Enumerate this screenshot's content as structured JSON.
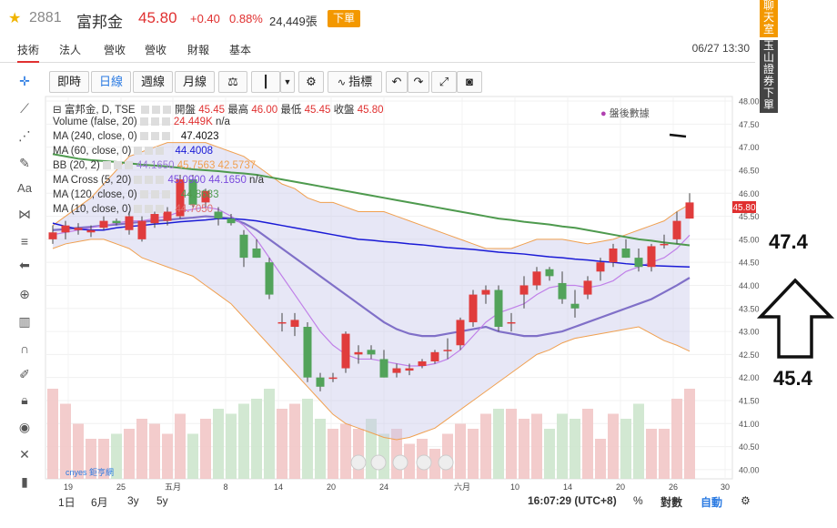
{
  "header": {
    "star_icon": "star-icon",
    "code": "2881",
    "name": "富邦金",
    "price": "45.80",
    "change": "+0.40",
    "change_pct": "0.88%",
    "volume": "24,449張",
    "order_label": "下單"
  },
  "tabs": [
    {
      "label": "技術"
    },
    {
      "label": "法人"
    },
    {
      "label": "營收"
    },
    {
      "label": "營收"
    },
    {
      "label": "財報"
    },
    {
      "label": "基本"
    }
  ],
  "datetime": "06/27 13:30",
  "side_buttons": {
    "chat": "聊天室",
    "broker": "玉山證券下單"
  },
  "toolbar": {
    "realtime": "即時",
    "daily": "日線",
    "weekly": "週線",
    "monthly": "月線",
    "indicators": "指標"
  },
  "legend": {
    "main": "富邦金, D, TSE",
    "open_label": "開盤",
    "open": "45.45",
    "high_label": "最高",
    "high": "46.00",
    "low_label": "最低",
    "low": "45.45",
    "close_label": "收盤",
    "close": "45.80",
    "volume": "Volume (false, 20)",
    "volume_val": "24.449K",
    "volume_na": "n/a",
    "ma240": "MA (240, close, 0)",
    "ma240_val": "47.4023",
    "ma60": "MA (60, close, 0)",
    "ma60_val": "44.4008",
    "bb": "BB (20, 2)",
    "bb_vals": [
      "44.1650",
      "45.7563",
      "42.5737"
    ],
    "macross": "MA Cross (5, 20)",
    "macross_vals": [
      "45.0900",
      "44.1650"
    ],
    "macross_na": "n/a",
    "ma120": "MA (120, close, 0)",
    "ma120_val": "44.8683",
    "ma10": "MA (10, close, 0)",
    "ma10_val": "44.7050",
    "after_hours": "盤後數據"
  },
  "current_price_tag": "45.80",
  "bottom": {
    "ranges": [
      "1日",
      "6月",
      "3y",
      "5y"
    ],
    "clock": "16:07:29 (UTC+8)",
    "pct": "%",
    "log": "對數",
    "auto": "自動",
    "logo": "cnyes 鉅亨網"
  },
  "annotations": {
    "upper": "47.4",
    "lower": "45.4"
  },
  "chart_data": {
    "type": "candlestick",
    "ylim": [
      39.8,
      48.1
    ],
    "y_ticks": [
      "48.00",
      "47.50",
      "47.00",
      "46.50",
      "46.00",
      "45.50",
      "45.00",
      "44.50",
      "44.00",
      "43.50",
      "43.00",
      "42.50",
      "42.00",
      "41.50",
      "41.00",
      "40.50",
      "40.00"
    ],
    "x_ticks": [
      "19",
      "25",
      "五月",
      "8",
      "14",
      "20",
      "24",
      "六月",
      "10",
      "14",
      "20",
      "26",
      "30"
    ],
    "colors": {
      "up": "#e03c3c",
      "down": "#52a35a",
      "ma60": "#1a1ad6",
      "ma120": "#4e9a4e",
      "bb_fill": "#c9c9ec",
      "bb_line": "#f0a050"
    },
    "candles": [
      {
        "o": 45.0,
        "h": 45.3,
        "l": 44.9,
        "c": 45.15
      },
      {
        "o": 45.15,
        "h": 45.4,
        "l": 45.0,
        "c": 45.3
      },
      {
        "o": 45.2,
        "h": 45.35,
        "l": 45.1,
        "c": 45.25
      },
      {
        "o": 45.15,
        "h": 45.3,
        "l": 45.05,
        "c": 45.2
      },
      {
        "o": 45.25,
        "h": 45.5,
        "l": 45.2,
        "c": 45.4
      },
      {
        "o": 45.4,
        "h": 45.45,
        "l": 45.3,
        "c": 45.35
      },
      {
        "o": 45.2,
        "h": 45.6,
        "l": 45.1,
        "c": 45.5
      },
      {
        "o": 45.0,
        "h": 45.5,
        "l": 44.95,
        "c": 45.4
      },
      {
        "o": 45.35,
        "h": 45.6,
        "l": 45.25,
        "c": 45.55
      },
      {
        "o": 45.4,
        "h": 45.7,
        "l": 45.3,
        "c": 45.6
      },
      {
        "o": 45.5,
        "h": 46.4,
        "l": 45.45,
        "c": 46.3
      },
      {
        "o": 46.3,
        "h": 46.4,
        "l": 45.7,
        "c": 45.75
      },
      {
        "o": 45.8,
        "h": 46.1,
        "l": 45.7,
        "c": 46.05
      },
      {
        "o": 45.6,
        "h": 45.7,
        "l": 45.3,
        "c": 45.45
      },
      {
        "o": 45.45,
        "h": 45.55,
        "l": 45.3,
        "c": 45.35
      },
      {
        "o": 45.1,
        "h": 45.2,
        "l": 44.4,
        "c": 44.6
      },
      {
        "o": 44.8,
        "h": 45.0,
        "l": 44.6,
        "c": 44.6
      },
      {
        "o": 44.5,
        "h": 44.6,
        "l": 43.7,
        "c": 43.8
      },
      {
        "o": 43.2,
        "h": 43.4,
        "l": 43.0,
        "c": 43.2
      },
      {
        "o": 43.1,
        "h": 43.4,
        "l": 42.9,
        "c": 43.25
      },
      {
        "o": 43.1,
        "h": 43.2,
        "l": 41.9,
        "c": 42.0
      },
      {
        "o": 42.0,
        "h": 42.1,
        "l": 41.7,
        "c": 41.8
      },
      {
        "o": 42.0,
        "h": 42.1,
        "l": 41.9,
        "c": 42.0
      },
      {
        "o": 42.2,
        "h": 43.0,
        "l": 42.1,
        "c": 42.95
      },
      {
        "o": 42.5,
        "h": 42.7,
        "l": 42.3,
        "c": 42.55
      },
      {
        "o": 42.6,
        "h": 42.7,
        "l": 42.4,
        "c": 42.5
      },
      {
        "o": 42.4,
        "h": 42.6,
        "l": 42.0,
        "c": 42.0
      },
      {
        "o": 42.1,
        "h": 42.3,
        "l": 42.0,
        "c": 42.2
      },
      {
        "o": 42.15,
        "h": 42.3,
        "l": 42.05,
        "c": 42.2
      },
      {
        "o": 42.25,
        "h": 42.4,
        "l": 42.2,
        "c": 42.35
      },
      {
        "o": 42.35,
        "h": 42.6,
        "l": 42.3,
        "c": 42.55
      },
      {
        "o": 42.6,
        "h": 42.85,
        "l": 42.4,
        "c": 42.6
      },
      {
        "o": 42.7,
        "h": 43.3,
        "l": 42.6,
        "c": 43.25
      },
      {
        "o": 43.2,
        "h": 43.9,
        "l": 43.1,
        "c": 43.8
      },
      {
        "o": 43.8,
        "h": 44.0,
        "l": 43.6,
        "c": 43.9
      },
      {
        "o": 43.9,
        "h": 44.0,
        "l": 43.0,
        "c": 43.1
      },
      {
        "o": 43.2,
        "h": 43.4,
        "l": 43.0,
        "c": 43.2
      },
      {
        "o": 43.8,
        "h": 44.2,
        "l": 43.5,
        "c": 44.0
      },
      {
        "o": 44.0,
        "h": 44.4,
        "l": 43.9,
        "c": 44.3
      },
      {
        "o": 44.35,
        "h": 44.4,
        "l": 44.1,
        "c": 44.2
      },
      {
        "o": 44.05,
        "h": 44.3,
        "l": 43.6,
        "c": 43.7
      },
      {
        "o": 43.6,
        "h": 43.9,
        "l": 43.3,
        "c": 43.5
      },
      {
        "o": 43.8,
        "h": 44.2,
        "l": 43.7,
        "c": 44.1
      },
      {
        "o": 44.3,
        "h": 44.6,
        "l": 44.1,
        "c": 44.5
      },
      {
        "o": 44.5,
        "h": 44.9,
        "l": 44.4,
        "c": 44.8
      },
      {
        "o": 44.8,
        "h": 45.0,
        "l": 44.6,
        "c": 44.6
      },
      {
        "o": 44.6,
        "h": 44.8,
        "l": 44.3,
        "c": 44.4
      },
      {
        "o": 44.4,
        "h": 44.9,
        "l": 44.3,
        "c": 44.85
      },
      {
        "o": 44.9,
        "h": 45.1,
        "l": 44.8,
        "c": 44.9
      },
      {
        "o": 45.0,
        "h": 45.6,
        "l": 44.9,
        "c": 45.4
      },
      {
        "o": 45.45,
        "h": 46.0,
        "l": 45.45,
        "c": 45.8
      }
    ],
    "volume": [
      1.8,
      1.5,
      1.1,
      0.8,
      0.8,
      0.9,
      1.0,
      1.2,
      1.1,
      0.9,
      1.3,
      0.9,
      1.2,
      1.4,
      1.3,
      1.5,
      1.6,
      1.8,
      1.4,
      1.5,
      1.6,
      1.2,
      1.0,
      1.1,
      1.0,
      1.2,
      0.9,
      1.0,
      0.7,
      0.8,
      0.6,
      0.9,
      1.1,
      1.0,
      1.3,
      1.4,
      1.4,
      1.2,
      1.3,
      1.0,
      1.3,
      1.2,
      1.4,
      0.8,
      1.3,
      1.2,
      1.5,
      1.0,
      1.0,
      1.6,
      1.8
    ],
    "ma60": [
      45.35,
      45.28,
      45.22,
      45.2,
      45.2,
      45.25,
      45.28,
      45.3,
      45.33,
      45.35,
      45.38,
      45.4,
      45.42,
      45.45,
      45.45,
      45.43,
      45.4,
      45.35,
      45.3,
      45.25,
      45.2,
      45.15,
      45.1,
      45.05,
      45.0,
      44.98,
      44.95,
      44.93,
      44.9,
      44.88,
      44.85,
      44.82,
      44.8,
      44.78,
      44.75,
      44.72,
      44.7,
      44.68,
      44.65,
      44.62,
      44.6,
      44.57,
      44.55,
      44.52,
      44.5,
      44.47,
      44.45,
      44.43,
      44.42,
      44.41,
      44.4
    ],
    "ma120": [
      46.85,
      46.8,
      46.75,
      46.72,
      46.7,
      46.68,
      46.65,
      46.62,
      46.6,
      46.58,
      46.55,
      46.52,
      46.5,
      46.48,
      46.45,
      46.43,
      46.4,
      46.35,
      46.3,
      46.25,
      46.2,
      46.15,
      46.1,
      46.05,
      46.0,
      45.95,
      45.9,
      45.85,
      45.8,
      45.75,
      45.7,
      45.65,
      45.6,
      45.55,
      45.5,
      45.45,
      45.42,
      45.38,
      45.35,
      45.32,
      45.28,
      45.25,
      45.2,
      45.15,
      45.1,
      45.05,
      45.0,
      44.97,
      44.93,
      44.9,
      44.87
    ],
    "bb_upper": [
      45.3,
      45.5,
      45.7,
      45.9,
      46.2,
      46.5,
      46.8,
      46.9,
      47.0,
      47.1,
      47.1,
      47.1,
      47.1,
      47.0,
      46.9,
      46.8,
      46.6,
      46.4,
      46.2,
      46.1,
      45.9,
      45.8,
      45.8,
      45.7,
      45.6,
      45.6,
      45.6,
      45.5,
      45.4,
      45.3,
      45.2,
      45.1,
      45.0,
      44.9,
      44.8,
      44.8,
      44.8,
      44.9,
      45.0,
      45.0,
      45.0,
      44.95,
      44.9,
      44.95,
      45.0,
      45.1,
      45.2,
      45.3,
      45.4,
      45.6,
      45.76
    ],
    "bb_lower": [
      44.8,
      44.9,
      44.95,
      45.0,
      45.0,
      44.9,
      44.8,
      44.6,
      44.5,
      44.4,
      44.3,
      44.2,
      44.0,
      43.8,
      43.6,
      43.3,
      43.0,
      42.7,
      42.4,
      42.1,
      41.8,
      41.5,
      41.2,
      41.0,
      40.9,
      40.8,
      40.7,
      40.65,
      40.7,
      40.8,
      40.9,
      41.1,
      41.3,
      41.5,
      41.7,
      41.9,
      42.1,
      42.3,
      42.5,
      42.6,
      42.75,
      42.85,
      42.9,
      42.95,
      43.0,
      43.05,
      43.1,
      42.95,
      42.8,
      42.7,
      42.57
    ],
    "ma_fast": [
      45.1,
      45.15,
      45.2,
      45.25,
      45.3,
      45.35,
      45.4,
      45.4,
      45.45,
      45.5,
      45.6,
      45.65,
      45.7,
      45.65,
      45.5,
      45.3,
      45.0,
      44.6,
      44.2,
      43.8,
      43.4,
      43.0,
      42.7,
      42.5,
      42.4,
      42.4,
      42.35,
      42.3,
      42.25,
      42.25,
      42.3,
      42.4,
      42.6,
      42.9,
      43.2,
      43.4,
      43.5,
      43.6,
      43.8,
      43.95,
      44.0,
      44.0,
      43.95,
      44.0,
      44.1,
      44.3,
      44.4,
      44.5,
      44.6,
      44.8,
      45.09
    ],
    "ma_slow": [
      45.2,
      45.22,
      45.25,
      45.27,
      45.3,
      45.32,
      45.35,
      45.38,
      45.4,
      45.42,
      45.45,
      45.47,
      45.5,
      45.48,
      45.45,
      45.35,
      45.2,
      45.0,
      44.8,
      44.6,
      44.4,
      44.2,
      44.0,
      43.8,
      43.6,
      43.4,
      43.2,
      43.05,
      42.95,
      42.9,
      42.9,
      42.95,
      43.0,
      43.05,
      43.1,
      43.0,
      42.95,
      42.9,
      42.9,
      42.95,
      43.0,
      43.1,
      43.2,
      43.3,
      43.4,
      43.5,
      43.6,
      43.7,
      43.85,
      44.0,
      44.165
    ]
  }
}
